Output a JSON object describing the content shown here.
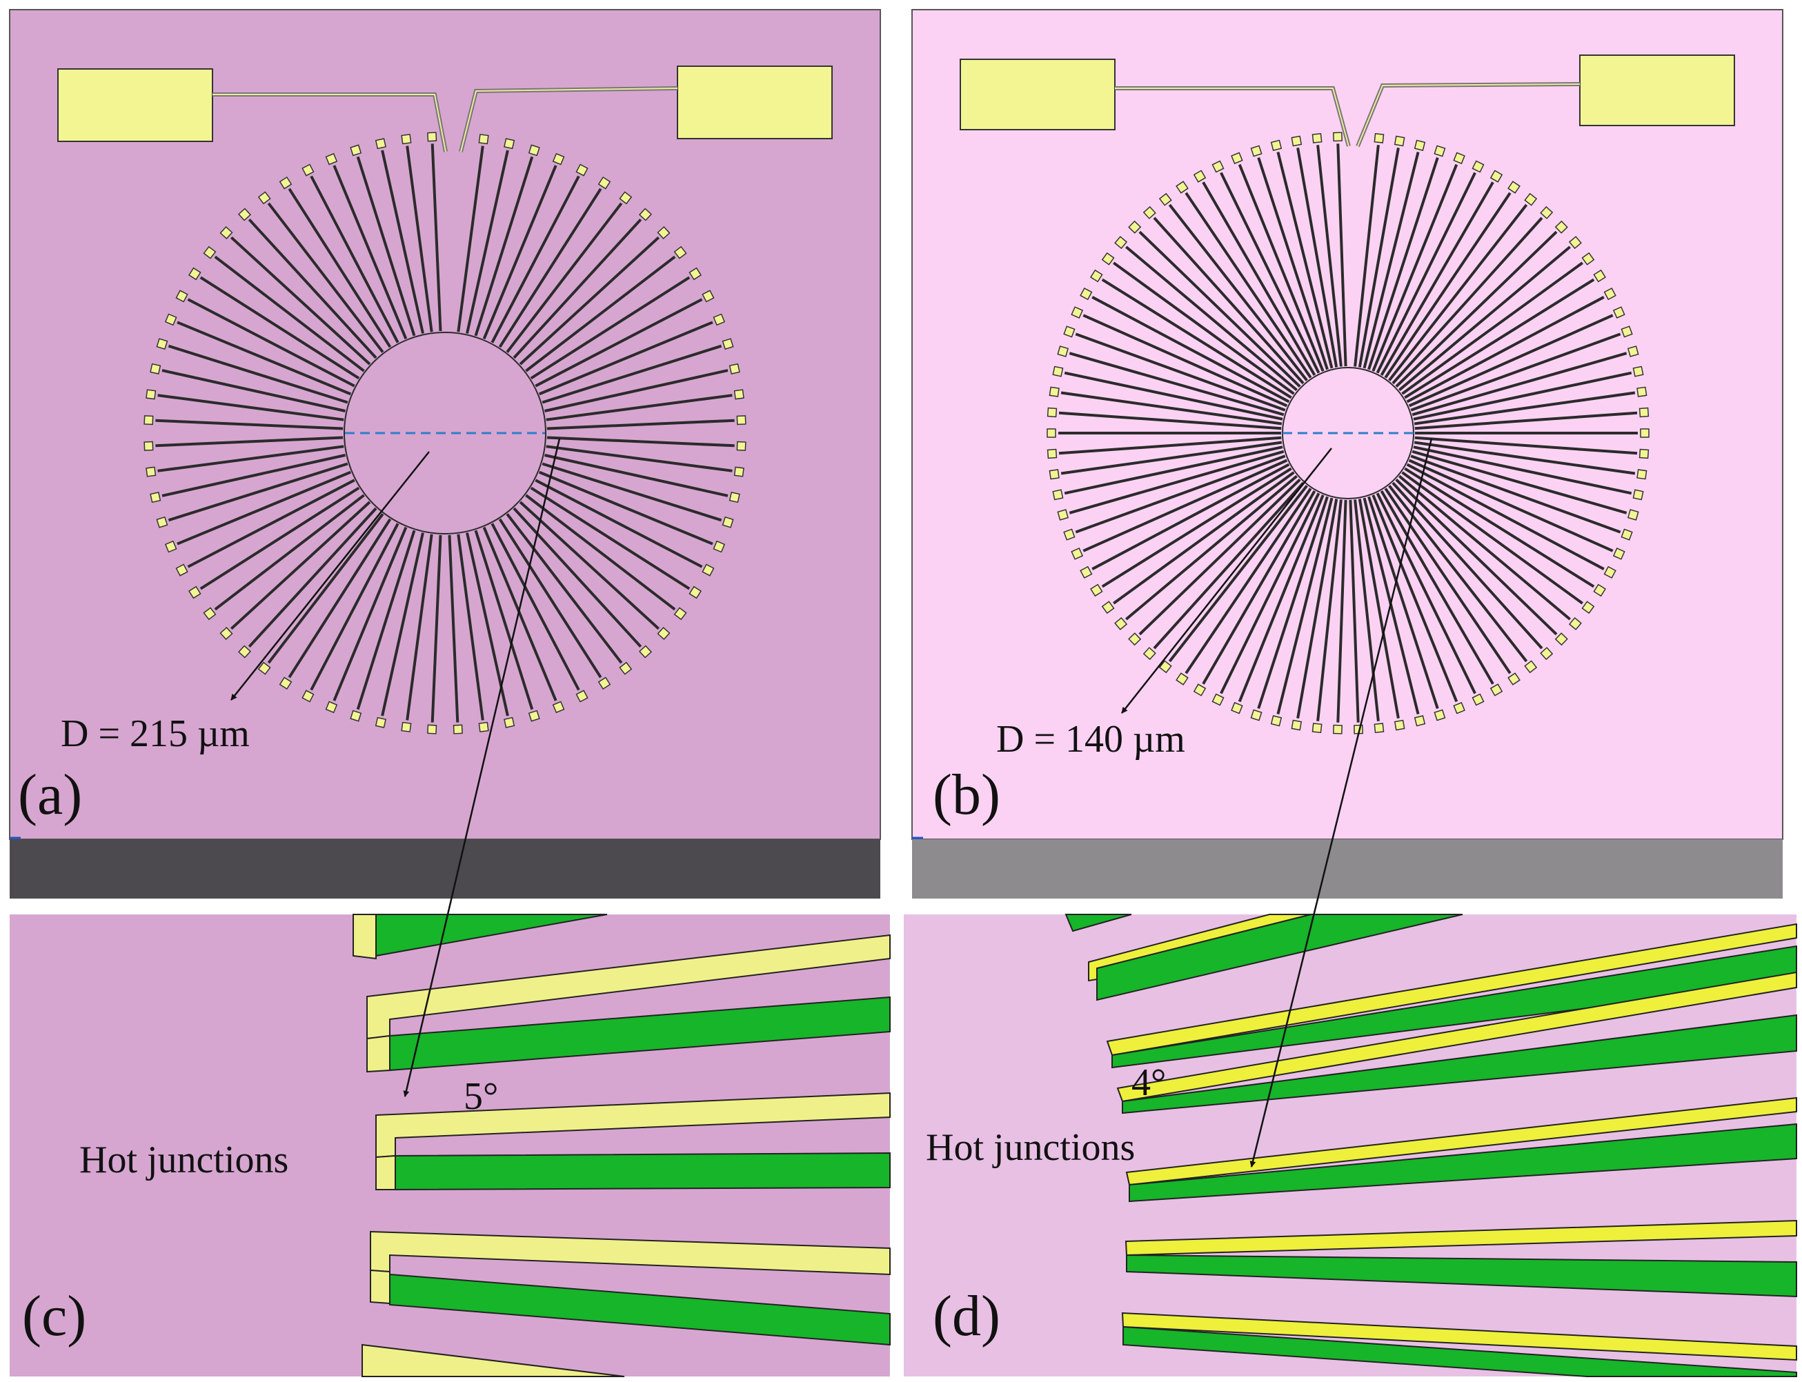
{
  "colors": {
    "substrate_a": "#d6a6d0",
    "substrate_b": "#fcd2f4",
    "substrate_side_a": "#4d4a4f",
    "substrate_side_b": "#8e8b8f",
    "background_c": "#d6a6d0",
    "background_d": "#e8c0e4",
    "pad": "#f3f593",
    "green": "#16b52a",
    "yellow": "#f0f08a",
    "bright_yellow": "#eef03c",
    "outline": "#2b2b2b",
    "dashed": "#2f7ec9"
  },
  "icons": {
    "arrow": "arrowhead-icon"
  },
  "panels": {
    "a": {
      "label": "(a)",
      "dimension": "D = 215 µm",
      "fingers": 72
    },
    "b": {
      "label": "(b)",
      "dimension": "D = 140 µm",
      "fingers": 90
    },
    "c": {
      "label": "(c)",
      "caption": "Hot junctions",
      "angle": "5°"
    },
    "d": {
      "label": "(d)",
      "caption": "Hot junctions",
      "angle": "4°"
    }
  }
}
